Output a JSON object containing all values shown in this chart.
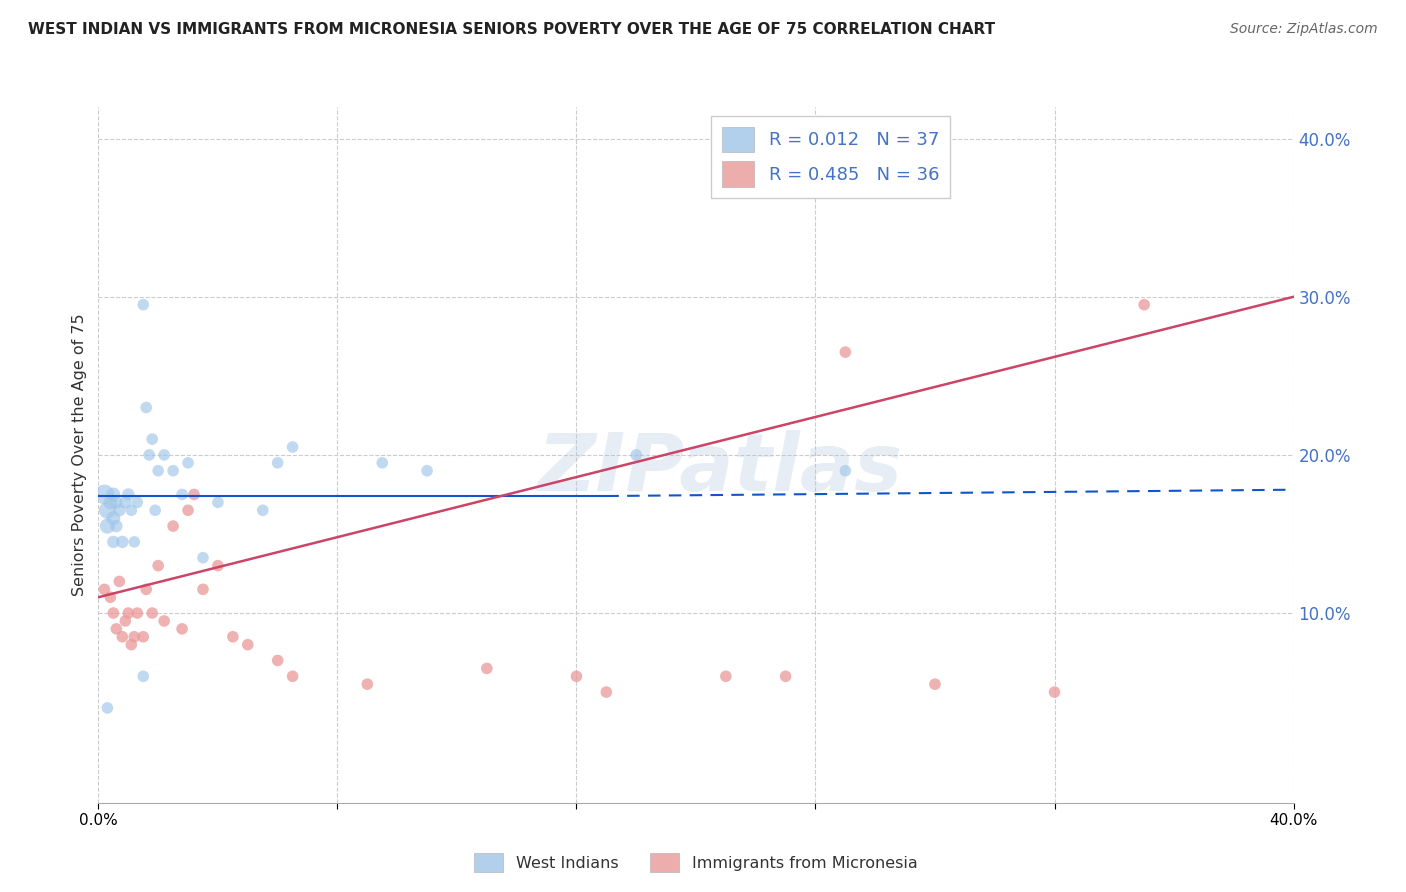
{
  "title": "WEST INDIAN VS IMMIGRANTS FROM MICRONESIA SENIORS POVERTY OVER THE AGE OF 75 CORRELATION CHART",
  "source": "Source: ZipAtlas.com",
  "ylabel": "Seniors Poverty Over the Age of 75",
  "xlim": [
    0.0,
    0.4
  ],
  "ylim": [
    -0.02,
    0.42
  ],
  "yticks": [
    0.1,
    0.2,
    0.3,
    0.4
  ],
  "ytick_labels": [
    "10.0%",
    "20.0%",
    "30.0%",
    "40.0%"
  ],
  "legend_label1": "R = 0.012   N = 37",
  "legend_label2": "R = 0.485   N = 36",
  "legend_bottom1": "West Indians",
  "legend_bottom2": "Immigrants from Micronesia",
  "blue_color": "#9fc5e8",
  "pink_color": "#ea9999",
  "blue_line_color": "#1155cc",
  "pink_line_color": "#cc4466",
  "watermark": "ZIPatlas",
  "west_indians_x": [
    0.002,
    0.003,
    0.003,
    0.004,
    0.005,
    0.005,
    0.005,
    0.006,
    0.006,
    0.007,
    0.008,
    0.009,
    0.01,
    0.011,
    0.012,
    0.013,
    0.015,
    0.016,
    0.017,
    0.018,
    0.019,
    0.02,
    0.022,
    0.025,
    0.028,
    0.03,
    0.035,
    0.04,
    0.055,
    0.06,
    0.065,
    0.095,
    0.11,
    0.18,
    0.25,
    0.015,
    0.003
  ],
  "west_indians_y": [
    0.175,
    0.165,
    0.155,
    0.17,
    0.175,
    0.16,
    0.145,
    0.17,
    0.155,
    0.165,
    0.145,
    0.17,
    0.175,
    0.165,
    0.145,
    0.17,
    0.295,
    0.23,
    0.2,
    0.21,
    0.165,
    0.19,
    0.2,
    0.19,
    0.175,
    0.195,
    0.135,
    0.17,
    0.165,
    0.195,
    0.205,
    0.195,
    0.19,
    0.2,
    0.19,
    0.06,
    0.04
  ],
  "west_indians_size": [
    200,
    150,
    120,
    100,
    100,
    100,
    80,
    80,
    80,
    80,
    80,
    80,
    80,
    70,
    70,
    70,
    70,
    70,
    70,
    70,
    70,
    70,
    70,
    70,
    70,
    70,
    70,
    70,
    70,
    70,
    70,
    70,
    70,
    70,
    70,
    70,
    70
  ],
  "micronesia_x": [
    0.002,
    0.004,
    0.005,
    0.006,
    0.007,
    0.008,
    0.009,
    0.01,
    0.011,
    0.012,
    0.013,
    0.015,
    0.016,
    0.018,
    0.02,
    0.022,
    0.025,
    0.028,
    0.03,
    0.032,
    0.035,
    0.04,
    0.045,
    0.05,
    0.06,
    0.065,
    0.09,
    0.13,
    0.16,
    0.17,
    0.21,
    0.23,
    0.25,
    0.28,
    0.32,
    0.35
  ],
  "micronesia_y": [
    0.115,
    0.11,
    0.1,
    0.09,
    0.12,
    0.085,
    0.095,
    0.1,
    0.08,
    0.085,
    0.1,
    0.085,
    0.115,
    0.1,
    0.13,
    0.095,
    0.155,
    0.09,
    0.165,
    0.175,
    0.115,
    0.13,
    0.085,
    0.08,
    0.07,
    0.06,
    0.055,
    0.065,
    0.06,
    0.05,
    0.06,
    0.06,
    0.265,
    0.055,
    0.05,
    0.295
  ],
  "micronesia_size": [
    70,
    70,
    70,
    70,
    70,
    70,
    70,
    70,
    70,
    70,
    70,
    70,
    70,
    70,
    70,
    70,
    70,
    70,
    70,
    70,
    70,
    70,
    70,
    70,
    70,
    70,
    70,
    70,
    70,
    70,
    70,
    70,
    70,
    70,
    70,
    70
  ],
  "blue_line_x": [
    0.0,
    0.17,
    0.4
  ],
  "blue_line_y": [
    0.174,
    0.174,
    0.178
  ],
  "pink_line_x": [
    0.0,
    0.4
  ],
  "pink_line_y": [
    0.11,
    0.3
  ]
}
